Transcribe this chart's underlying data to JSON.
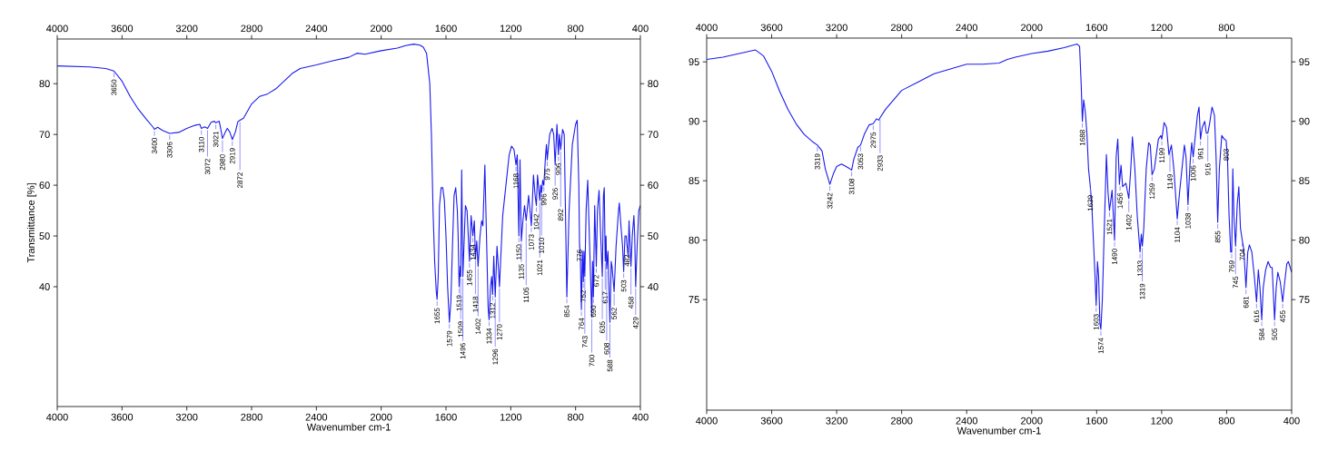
{
  "chart_data": [
    {
      "type": "line",
      "xlabel": "Wavenumber cm-1",
      "ylabel": "Transmittance [%]",
      "xlim": [
        4000,
        400
      ],
      "ylim": [
        16.4,
        88.8
      ],
      "xticks": [
        4000,
        3600,
        3200,
        2800,
        2400,
        2000,
        1600,
        1200,
        800,
        400
      ],
      "yticks": [
        40,
        50,
        60,
        70,
        80
      ],
      "x2lim": [
        4000,
        400
      ],
      "x2ticks": [
        4000,
        3600,
        3200,
        2800,
        2400,
        2000,
        1600,
        1200,
        800,
        400
      ],
      "y2lim": [
        16.4,
        88.8
      ],
      "y2ticks": [
        40,
        50,
        60,
        70,
        80
      ],
      "series": [
        {
          "color": "#1a1aee",
          "x": [
            4000,
            3800,
            3700,
            3650,
            3600,
            3550,
            3500,
            3450,
            3410,
            3400,
            3380,
            3350,
            3306,
            3250,
            3200,
            3150,
            3120,
            3110,
            3090,
            3072,
            3050,
            3030,
            3021,
            3000,
            2990,
            2980,
            2960,
            2950,
            2935,
            2919,
            2900,
            2885,
            2872,
            2850,
            2800,
            2750,
            2700,
            2650,
            2600,
            2550,
            2500,
            2400,
            2300,
            2200,
            2150,
            2100,
            2000,
            1900,
            1850,
            1800,
            1760,
            1740,
            1720,
            1700,
            1690,
            1680,
            1670,
            1660,
            1655,
            1648,
            1640,
            1630,
            1620,
            1610,
            1600,
            1590,
            1579,
            1570,
            1560,
            1550,
            1540,
            1530,
            1525,
            1519,
            1512,
            1509,
            1503,
            1496,
            1480,
            1470,
            1455,
            1445,
            1434,
            1425,
            1418,
            1410,
            1402,
            1390,
            1380,
            1372,
            1360,
            1350,
            1340,
            1334,
            1325,
            1318,
            1312,
            1305,
            1296,
            1285,
            1275,
            1270,
            1260,
            1250,
            1230,
            1210,
            1195,
            1180,
            1168,
            1160,
            1150,
            1143,
            1135,
            1125,
            1115,
            1105,
            1090,
            1073,
            1060,
            1050,
            1042,
            1035,
            1021,
            1015,
            1010,
            1003,
            996,
            985,
            980,
            975,
            960,
            945,
            935,
            926,
            915,
            906,
            900,
            892,
            880,
            870,
            860,
            854,
            840,
            820,
            800,
            790,
            780,
            776,
            770,
            764,
            758,
            752,
            748,
            743,
            735,
            725,
            715,
            700,
            695,
            690,
            682,
            672,
            665,
            655,
            645,
            635,
            628,
            623,
            617,
            612,
            608,
            600,
            588,
            580,
            575,
            562,
            550,
            535,
            530,
            520,
            510,
            503,
            495,
            487,
            482,
            475,
            470,
            458,
            450,
            440,
            435,
            429,
            420,
            410,
            400
          ],
          "values": [
            83.5,
            83.3,
            83,
            82.5,
            80.5,
            77.5,
            75,
            73,
            71.5,
            71,
            71.4,
            70.8,
            70.2,
            70.4,
            71.2,
            71.8,
            72,
            71.2,
            71.5,
            71.2,
            72.4,
            72.6,
            72.3,
            72.6,
            71,
            69.2,
            70.6,
            71.2,
            70.5,
            69,
            70.5,
            72.5,
            72.8,
            73.2,
            76,
            77.5,
            78,
            79,
            80.5,
            82,
            83,
            83.7,
            84.5,
            85.2,
            86,
            85.8,
            86.5,
            87,
            87.5,
            87.8,
            87.6,
            87.2,
            86,
            80,
            70,
            55,
            45,
            39,
            37.5,
            42,
            56,
            59.5,
            59.5,
            57,
            50,
            40,
            33,
            37,
            48,
            58,
            59.5,
            55,
            50,
            40,
            44,
            42,
            63,
            42,
            56,
            55,
            45,
            54,
            50,
            53,
            45.5,
            49,
            44,
            50,
            53,
            52,
            64,
            50,
            36,
            33.5,
            40,
            42,
            38.5,
            46,
            38,
            48,
            43,
            40,
            47,
            54,
            60,
            66,
            67.7,
            67,
            64,
            66,
            50,
            65,
            49,
            53,
            56,
            53,
            58,
            52,
            62,
            58,
            56,
            62,
            57,
            60,
            58.5,
            61,
            60,
            66,
            68,
            65,
            70,
            71.2,
            70,
            64,
            72,
            66,
            70,
            67,
            71,
            70,
            50,
            38,
            55,
            68,
            72,
            72.8,
            60,
            49,
            45,
            35.5,
            47,
            41,
            47,
            42,
            55,
            61,
            50,
            34,
            45,
            38,
            56,
            44,
            55,
            59,
            50,
            42,
            58,
            59.5,
            45,
            50,
            43.5,
            47,
            33,
            45,
            44,
            39,
            48,
            55,
            56.5,
            52,
            48,
            43,
            50,
            50,
            48,
            46,
            53,
            44,
            50,
            54,
            50,
            40,
            48,
            55,
            56
          ]
        }
      ],
      "annotations": [
        {
          "text": "3650",
          "x": 3650,
          "y": 82.5
        },
        {
          "text": "3400",
          "x": 3400,
          "y": 71
        },
        {
          "text": "3306",
          "x": 3306,
          "y": 70.2
        },
        {
          "text": "3110",
          "x": 3110,
          "y": 71.2
        },
        {
          "text": "3072",
          "x": 3072,
          "y": 71.2
        },
        {
          "text": "3021",
          "x": 3021,
          "y": 72.3
        },
        {
          "text": "2980",
          "x": 2980,
          "y": 69.2
        },
        {
          "text": "2919",
          "x": 2919,
          "y": 69
        },
        {
          "text": "2872",
          "x": 2872,
          "y": 72.8
        },
        {
          "text": "1655",
          "x": 1655,
          "y": 37.5
        },
        {
          "text": "1579",
          "x": 1579,
          "y": 33
        },
        {
          "text": "1519",
          "x": 1519,
          "y": 40
        },
        {
          "text": "1509",
          "x": 1509,
          "y": 42
        },
        {
          "text": "1496",
          "x": 1496,
          "y": 42
        },
        {
          "text": "1455",
          "x": 1455,
          "y": 45
        },
        {
          "text": "1434",
          "x": 1434,
          "y": 50
        },
        {
          "text": "1418",
          "x": 1418,
          "y": 45.5
        },
        {
          "text": "1402",
          "x": 1402,
          "y": 44
        },
        {
          "text": "1334",
          "x": 1334,
          "y": 33.5
        },
        {
          "text": "1312",
          "x": 1312,
          "y": 38.5
        },
        {
          "text": "1296",
          "x": 1296,
          "y": 38
        },
        {
          "text": "1270",
          "x": 1270,
          "y": 40
        },
        {
          "text": "1168",
          "x": 1168,
          "y": 64
        },
        {
          "text": "1150",
          "x": 1150,
          "y": 50
        },
        {
          "text": "1135",
          "x": 1135,
          "y": 49
        },
        {
          "text": "1105",
          "x": 1105,
          "y": 53
        },
        {
          "text": "1073",
          "x": 1073,
          "y": 52
        },
        {
          "text": "1042",
          "x": 1042,
          "y": 56
        },
        {
          "text": "1021",
          "x": 1021,
          "y": 57
        },
        {
          "text": "1010",
          "x": 1010,
          "y": 58.5
        },
        {
          "text": "996",
          "x": 996,
          "y": 60
        },
        {
          "text": "975",
          "x": 975,
          "y": 65
        },
        {
          "text": "926",
          "x": 926,
          "y": 64
        },
        {
          "text": "906",
          "x": 906,
          "y": 66
        },
        {
          "text": "892",
          "x": 892,
          "y": 67
        },
        {
          "text": "854",
          "x": 854,
          "y": 38
        },
        {
          "text": "776",
          "x": 776,
          "y": 49
        },
        {
          "text": "764",
          "x": 764,
          "y": 35.5
        },
        {
          "text": "752",
          "x": 752,
          "y": 41
        },
        {
          "text": "743",
          "x": 743,
          "y": 42
        },
        {
          "text": "700",
          "x": 700,
          "y": 34
        },
        {
          "text": "690",
          "x": 690,
          "y": 38
        },
        {
          "text": "672",
          "x": 672,
          "y": 44
        },
        {
          "text": "635",
          "x": 635,
          "y": 42
        },
        {
          "text": "617",
          "x": 617,
          "y": 45
        },
        {
          "text": "608",
          "x": 608,
          "y": 43.5
        },
        {
          "text": "588",
          "x": 588,
          "y": 33
        },
        {
          "text": "562",
          "x": 562,
          "y": 39
        },
        {
          "text": "503",
          "x": 503,
          "y": 43
        },
        {
          "text": "482",
          "x": 482,
          "y": 48
        },
        {
          "text": "458",
          "x": 458,
          "y": 44
        },
        {
          "text": "429",
          "x": 429,
          "y": 40
        }
      ]
    },
    {
      "type": "line",
      "xlabel": "Wavenumber cm-1",
      "xlim": [
        4000,
        400
      ],
      "ylim": [
        65.7,
        97
      ],
      "xticks": [
        4000,
        3600,
        3200,
        2800,
        2400,
        2000,
        1600,
        1200,
        800,
        400
      ],
      "yticks": [
        75,
        80,
        85,
        90,
        95
      ],
      "x2lim": [
        4000,
        400
      ],
      "x2ticks": [
        4000,
        3600,
        3200,
        2800,
        2400,
        2000,
        1600,
        1200,
        800
      ],
      "y2lim": [
        65.7,
        97
      ],
      "y2ticks": [
        75,
        80,
        85,
        90,
        95
      ],
      "series": [
        {
          "color": "#1a1aee",
          "x": [
            4000,
            3900,
            3800,
            3700,
            3650,
            3600,
            3550,
            3500,
            3450,
            3400,
            3350,
            3319,
            3290,
            3270,
            3242,
            3220,
            3200,
            3170,
            3130,
            3108,
            3095,
            3070,
            3053,
            3030,
            3000,
            2975,
            2955,
            2940,
            2933,
            2900,
            2850,
            2800,
            2700,
            2600,
            2500,
            2400,
            2300,
            2200,
            2150,
            2100,
            2000,
            1900,
            1800,
            1720,
            1705,
            1695,
            1688,
            1680,
            1670,
            1660,
            1650,
            1639,
            1630,
            1620,
            1610,
            1603,
            1595,
            1588,
            1580,
            1574,
            1565,
            1555,
            1540,
            1530,
            1521,
            1505,
            1490,
            1480,
            1470,
            1460,
            1450,
            1440,
            1420,
            1402,
            1390,
            1380,
            1365,
            1350,
            1333,
            1325,
            1319,
            1310,
            1295,
            1280,
            1270,
            1259,
            1245,
            1220,
            1205,
            1199,
            1185,
            1170,
            1155,
            1149,
            1140,
            1125,
            1104,
            1090,
            1075,
            1060,
            1050,
            1038,
            1025,
            1015,
            1006,
            995,
            980,
            970,
            961,
            950,
            935,
            925,
            916,
            905,
            890,
            875,
            865,
            855,
            845,
            830,
            815,
            803,
            795,
            785,
            775,
            769,
            762,
            755,
            745,
            735,
            725,
            715,
            704,
            695,
            681,
            670,
            660,
            645,
            630,
            616,
            605,
            595,
            584,
            575,
            560,
            545,
            530,
            520,
            505,
            495,
            485,
            470,
            455,
            445,
            430,
            420,
            400
          ],
          "values": [
            95.2,
            95.4,
            95.7,
            96,
            95.5,
            94.2,
            92.5,
            91,
            89.8,
            88.9,
            88.3,
            88,
            87.5,
            86,
            84.7,
            85.6,
            86.2,
            86.4,
            86.1,
            85.9,
            86.8,
            87.8,
            88,
            88.9,
            89.7,
            89.8,
            90.2,
            90.1,
            90.3,
            91,
            91.8,
            92.6,
            93.3,
            94,
            94.4,
            94.8,
            94.8,
            94.9,
            95.2,
            95.4,
            95.7,
            95.9,
            96.2,
            96.5,
            96.3,
            93,
            90,
            91.8,
            90.8,
            89,
            86,
            84.5,
            83,
            80,
            77,
            74.5,
            78.2,
            77,
            73,
            72.5,
            75,
            80,
            87.2,
            84,
            82.5,
            84.2,
            80,
            87,
            88.5,
            84.7,
            86.3,
            84.5,
            84.8,
            83.5,
            86,
            88.7,
            86,
            82,
            79,
            80.5,
            79.5,
            81,
            86,
            88.2,
            88,
            85.5,
            86,
            88.5,
            88.8,
            88.5,
            89.9,
            89.5,
            87.2,
            87.5,
            88,
            86,
            81.8,
            84,
            86,
            88,
            87,
            83,
            86.5,
            88.2,
            87,
            88.5,
            90.5,
            91.2,
            88.5,
            89.5,
            90,
            89,
            89,
            89.8,
            91.2,
            90.5,
            87,
            81.5,
            86,
            88.8,
            88.5,
            88.4,
            87,
            82,
            79,
            79,
            86,
            82,
            79.5,
            83,
            84.5,
            81,
            80,
            79.3,
            76,
            79,
            79.6,
            79,
            77,
            74.8,
            77.5,
            76,
            73.3,
            76,
            77.5,
            78.2,
            77.7,
            77.7,
            73.3,
            76,
            77.3,
            76.5,
            74.8,
            76.2,
            78,
            78.2,
            77.3
          ]
        }
      ],
      "annotations": [
        {
          "text": "3319",
          "x": 3319,
          "y": 88
        },
        {
          "text": "3242",
          "x": 3242,
          "y": 84.7
        },
        {
          "text": "3108",
          "x": 3108,
          "y": 85.9
        },
        {
          "text": "3053",
          "x": 3053,
          "y": 88
        },
        {
          "text": "2975",
          "x": 2975,
          "y": 89.8
        },
        {
          "text": "2933",
          "x": 2933,
          "y": 90.3
        },
        {
          "text": "1688",
          "x": 1688,
          "y": 90
        },
        {
          "text": "1639",
          "x": 1639,
          "y": 84.5
        },
        {
          "text": "1603",
          "x": 1603,
          "y": 74.5
        },
        {
          "text": "1574",
          "x": 1574,
          "y": 72.5
        },
        {
          "text": "1521",
          "x": 1521,
          "y": 82.5
        },
        {
          "text": "1490",
          "x": 1490,
          "y": 80
        },
        {
          "text": "1456",
          "x": 1456,
          "y": 84.7
        },
        {
          "text": "1402",
          "x": 1402,
          "y": 83.5
        },
        {
          "text": "1333",
          "x": 1333,
          "y": 79
        },
        {
          "text": "1319",
          "x": 1319,
          "y": 79.5
        },
        {
          "text": "1259",
          "x": 1259,
          "y": 85.5
        },
        {
          "text": "1199",
          "x": 1199,
          "y": 88.5
        },
        {
          "text": "1149",
          "x": 1149,
          "y": 87.5
        },
        {
          "text": "1104",
          "x": 1104,
          "y": 81.8
        },
        {
          "text": "1038",
          "x": 1038,
          "y": 83
        },
        {
          "text": "1006",
          "x": 1006,
          "y": 87
        },
        {
          "text": "961",
          "x": 961,
          "y": 88.5
        },
        {
          "text": "916",
          "x": 916,
          "y": 89
        },
        {
          "text": "855",
          "x": 855,
          "y": 81.5
        },
        {
          "text": "803",
          "x": 803,
          "y": 88.4
        },
        {
          "text": "769",
          "x": 769,
          "y": 79
        },
        {
          "text": "745",
          "x": 745,
          "y": 79.5
        },
        {
          "text": "704",
          "x": 704,
          "y": 80
        },
        {
          "text": "681",
          "x": 681,
          "y": 76
        },
        {
          "text": "616",
          "x": 616,
          "y": 74.8
        },
        {
          "text": "584",
          "x": 584,
          "y": 73.3
        },
        {
          "text": "505",
          "x": 505,
          "y": 73.3
        },
        {
          "text": "455",
          "x": 455,
          "y": 74.8
        }
      ]
    }
  ]
}
